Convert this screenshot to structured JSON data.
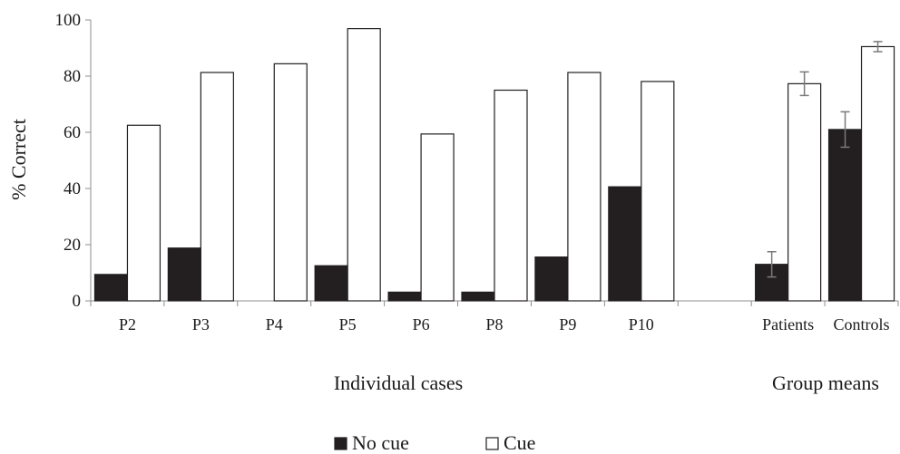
{
  "chart_data": {
    "type": "bar",
    "ylabel": "% Correct",
    "ylim": [
      0,
      100
    ],
    "yticks": [
      0,
      20,
      40,
      60,
      80,
      100
    ],
    "grid": false,
    "legend_position": "bottom",
    "categories": [
      "P2",
      "P3",
      "P4",
      "P5",
      "P6",
      "P8",
      "P9",
      "P10",
      "",
      "Patients",
      "Controls"
    ],
    "category_groups": [
      {
        "label": "Individual cases"
      },
      {
        "label": "Group means"
      }
    ],
    "series": [
      {
        "name": "No cue",
        "color": "#231f20",
        "values": [
          9.4,
          18.8,
          0,
          12.5,
          3.1,
          3.1,
          15.6,
          40.6,
          null,
          13,
          61
        ]
      },
      {
        "name": "Cue",
        "color": "#ffffff",
        "values": [
          62.5,
          81.3,
          84.4,
          96.9,
          59.4,
          75,
          81.3,
          78.1,
          null,
          77.3,
          90.5
        ]
      }
    ],
    "error_bars": {
      "No cue": [
        null,
        null,
        null,
        null,
        null,
        null,
        null,
        null,
        null,
        4.5,
        6.3
      ],
      "Cue": [
        null,
        null,
        null,
        null,
        null,
        null,
        null,
        null,
        null,
        4.2,
        1.8
      ]
    }
  }
}
